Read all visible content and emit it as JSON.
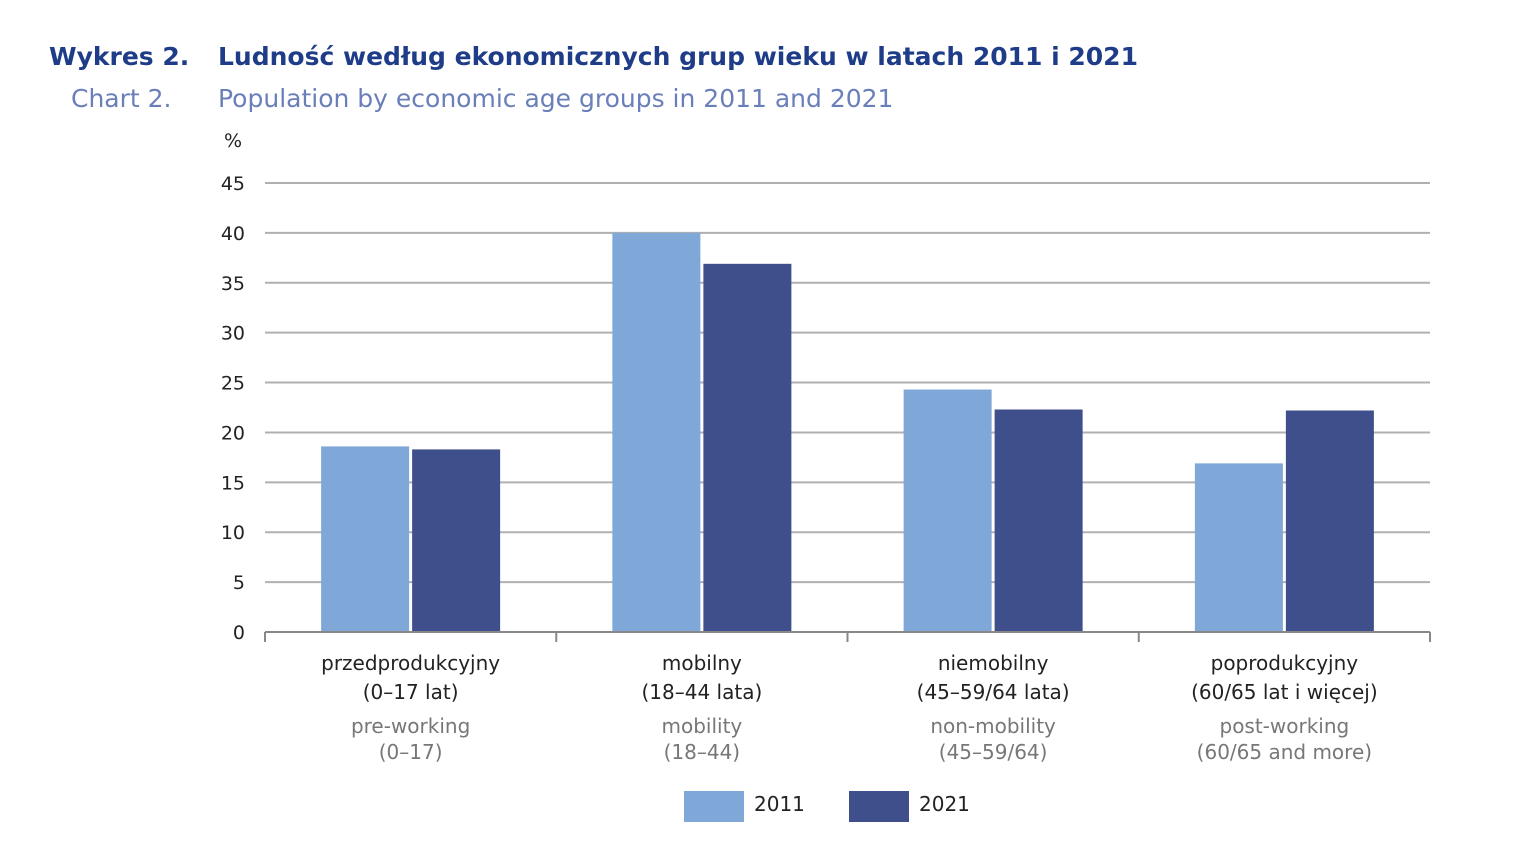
{
  "header": {
    "label_pl": "Wykres 2.",
    "title_pl": "Ludność według ekonomicznych grup wieku w latach 2011 i 2021",
    "label_en": "Chart 2.",
    "title_en": "Population by economic age groups in 2011 and 2021"
  },
  "chart_data": {
    "type": "bar",
    "ylabel": "%",
    "ylim": [
      0,
      45
    ],
    "yticks": [
      0,
      5,
      10,
      15,
      20,
      25,
      30,
      35,
      40,
      45
    ],
    "grid": true,
    "legend_position": "bottom-center",
    "categories": [
      {
        "pl": [
          "przedprodukcyjny",
          "(0–17 lat)"
        ],
        "en": [
          "pre-working",
          "(0–17)"
        ]
      },
      {
        "pl": [
          "mobilny",
          "(18–44 lata)"
        ],
        "en": [
          "mobility",
          "(18–44)"
        ]
      },
      {
        "pl": [
          "niemobilny",
          "(45–59/64 lata)"
        ],
        "en": [
          "non-mobility",
          "(45–59/64)"
        ]
      },
      {
        "pl": [
          "poprodukcyjny",
          "(60/65 lat i więcej)"
        ],
        "en": [
          "post-working",
          "(60/65 and more)"
        ]
      }
    ],
    "series": [
      {
        "name": "2011",
        "color": "#7fa8d9",
        "values": [
          18.6,
          40.0,
          24.3,
          16.9
        ]
      },
      {
        "name": "2021",
        "color": "#3e4f8c",
        "values": [
          18.3,
          36.9,
          22.3,
          22.2
        ]
      }
    ]
  }
}
